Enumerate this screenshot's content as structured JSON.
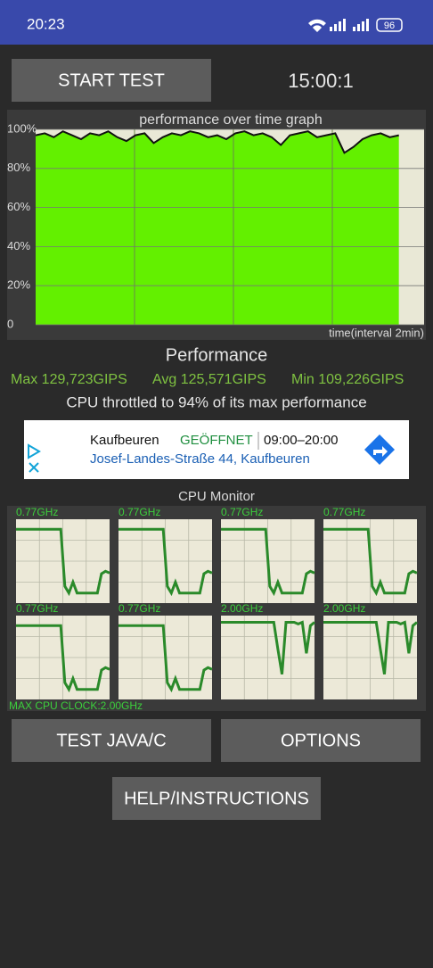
{
  "status_bar": {
    "time": "20:23",
    "battery": "96"
  },
  "buttons": {
    "start": "START TEST",
    "test_java": "TEST JAVA/C",
    "options": "OPTIONS",
    "help": "HELP/INSTRUCTIONS"
  },
  "timer": "15:00:1",
  "chart_data": {
    "type": "area",
    "title": "performance over time graph",
    "x_label": "time(interval 2min)",
    "ylim": [
      0,
      100
    ],
    "yticks": [
      0,
      {
        "value": 20,
        "label": "20%"
      },
      {
        "value": 40,
        "label": "40%"
      },
      {
        "value": 60,
        "label": "60%"
      },
      {
        "value": 80,
        "label": "80%"
      },
      {
        "value": 100,
        "label": "100%"
      }
    ],
    "color": "#63f000",
    "line_color": "#111111",
    "grid": true,
    "values": [
      97,
      98,
      96,
      99,
      97,
      95,
      98,
      97,
      99,
      96,
      94,
      97,
      98,
      93,
      96,
      98,
      97,
      99,
      98,
      96,
      97,
      95,
      98,
      99,
      97,
      98,
      96,
      92,
      97,
      98,
      99,
      96,
      97,
      98,
      88,
      91,
      95,
      97,
      98,
      96,
      97
    ]
  },
  "performance": {
    "heading": "Performance",
    "max": "Max 129,723GIPS",
    "avg": "Avg 125,571GIPS",
    "min": "Min 109,226GIPS",
    "throttle": "CPU throttled to 94% of its max performance"
  },
  "ad": {
    "place": "Kaufbeuren",
    "status": "GEÖFFNET",
    "hours": "09:00–20:00",
    "address": "Josef-Landes-Straße 44, Kaufbeuren"
  },
  "cpu_monitor": {
    "title": "CPU Monitor",
    "ylim": [
      0,
      100
    ],
    "max_clock": "MAX CPU CLOCK:2.00GHz",
    "cores": [
      {
        "label": "0.77GHz",
        "values": [
          88,
          88,
          88,
          88,
          88,
          88,
          88,
          88,
          88,
          88,
          88,
          88,
          20,
          12,
          25,
          12,
          12,
          12,
          12,
          12,
          12,
          35,
          38,
          36
        ]
      },
      {
        "label": "0.77GHz",
        "values": [
          88,
          88,
          88,
          88,
          88,
          88,
          88,
          88,
          88,
          88,
          88,
          88,
          20,
          12,
          25,
          12,
          12,
          12,
          12,
          12,
          12,
          35,
          38,
          36
        ]
      },
      {
        "label": "0.77GHz",
        "values": [
          88,
          88,
          88,
          88,
          88,
          88,
          88,
          88,
          88,
          88,
          88,
          88,
          20,
          12,
          25,
          12,
          12,
          12,
          12,
          12,
          12,
          35,
          38,
          36
        ]
      },
      {
        "label": "0.77GHz",
        "values": [
          88,
          88,
          88,
          88,
          88,
          88,
          88,
          88,
          88,
          88,
          88,
          88,
          20,
          12,
          25,
          12,
          12,
          12,
          12,
          12,
          12,
          35,
          38,
          36
        ]
      },
      {
        "label": "0.77GHz",
        "values": [
          88,
          88,
          88,
          88,
          88,
          88,
          88,
          88,
          88,
          88,
          88,
          88,
          20,
          12,
          25,
          12,
          12,
          12,
          12,
          12,
          12,
          35,
          38,
          36
        ]
      },
      {
        "label": "0.77GHz",
        "values": [
          88,
          88,
          88,
          88,
          88,
          88,
          88,
          88,
          88,
          88,
          88,
          88,
          20,
          12,
          25,
          12,
          12,
          12,
          12,
          12,
          12,
          35,
          38,
          36
        ]
      },
      {
        "label": "2.00GHz",
        "values": [
          92,
          92,
          92,
          92,
          92,
          92,
          92,
          92,
          92,
          92,
          92,
          92,
          92,
          92,
          60,
          30,
          92,
          92,
          92,
          90,
          92,
          55,
          88,
          92
        ]
      },
      {
        "label": "2.00GHz",
        "values": [
          92,
          92,
          92,
          92,
          92,
          92,
          92,
          92,
          92,
          92,
          92,
          92,
          92,
          92,
          60,
          30,
          92,
          92,
          92,
          90,
          92,
          55,
          88,
          92
        ]
      }
    ]
  }
}
